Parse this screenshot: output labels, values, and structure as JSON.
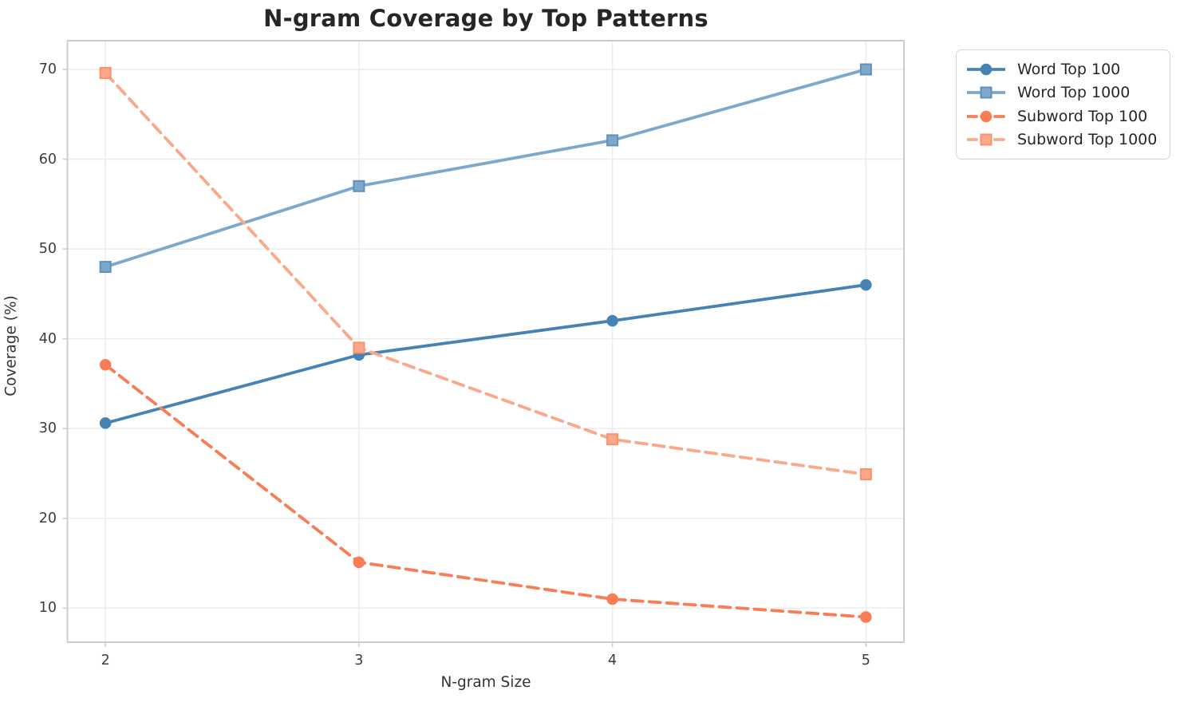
{
  "chart_data": {
    "type": "line",
    "title": "N-gram Coverage by Top Patterns",
    "xlabel": "N-gram Size",
    "ylabel": "Coverage (%)",
    "x": [
      2,
      3,
      4,
      5
    ],
    "xticks": [
      "2",
      "3",
      "4",
      "5"
    ],
    "yticks": [
      10,
      20,
      30,
      40,
      50,
      60,
      70
    ],
    "xlim": [
      1.85,
      5.15
    ],
    "ylim": [
      6.2,
      73.2
    ],
    "grid": true,
    "legend_position": "outside-right-top",
    "series": [
      {
        "name": "Word Top 100",
        "values": [
          30.6,
          38.2,
          42.0,
          46.0
        ],
        "color": "#4682B4",
        "edge_color": "#4682B4",
        "marker": "circle",
        "line_style": "solid"
      },
      {
        "name": "Word Top 1000",
        "values": [
          48.0,
          57.0,
          62.1,
          70.0
        ],
        "color": "#7DA8CA",
        "edge_color": "#5E91BE",
        "marker": "square",
        "line_style": "solid"
      },
      {
        "name": "Subword Top 100",
        "values": [
          37.1,
          15.1,
          11.0,
          9.0
        ],
        "color": "#F97C54",
        "edge_color": "#F97C54",
        "marker": "circle",
        "line_style": "dashed"
      },
      {
        "name": "Subword Top 1000",
        "values": [
          69.6,
          39.0,
          28.8,
          24.9
        ],
        "color": "#FBA78A",
        "edge_color": "#F9916C",
        "marker": "square",
        "line_style": "dashed"
      }
    ],
    "colors": {
      "background": "#ffffff",
      "grid": "#ececec",
      "spine": "#cccccc",
      "title_text": "#262626",
      "tick_text": "#3d3d3d",
      "axis_label_text": "#333333",
      "legend_border": "#d5d5d5"
    }
  }
}
